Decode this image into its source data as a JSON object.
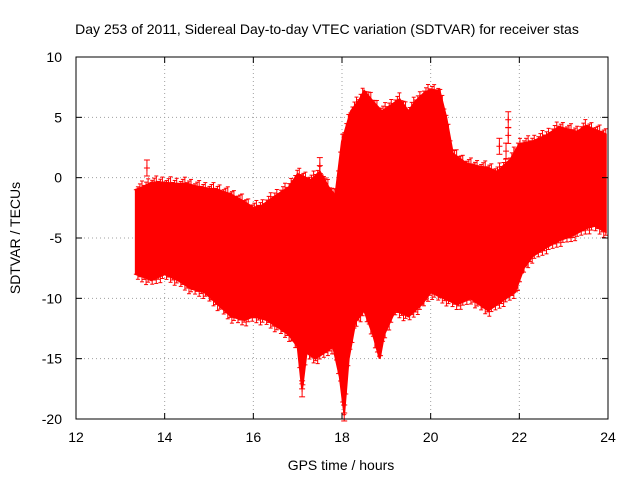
{
  "chart_data": {
    "type": "scatter",
    "title": "Day 253 of 2011, Sidereal Day-to-day VTEC variation (SDTVAR) for receiver stas",
    "xlabel": "GPS time / hours",
    "ylabel": "SDTVAR / TECUs",
    "xlim": [
      12,
      24
    ],
    "ylim": [
      -20,
      10
    ],
    "xticks": [
      "12",
      "14",
      "16",
      "18",
      "20",
      "22",
      "24"
    ],
    "yticks": [
      "-20",
      "-15",
      "-10",
      "-5",
      "0",
      "5",
      "10"
    ],
    "grid": true,
    "legend": "none",
    "series_color": "#ff0000",
    "upper_envelope": [
      [
        13.35,
        -1.0
      ],
      [
        13.5,
        -0.8
      ],
      [
        13.7,
        -0.4
      ],
      [
        14.0,
        -0.4
      ],
      [
        14.2,
        -0.5
      ],
      [
        14.5,
        -0.5
      ],
      [
        14.8,
        -0.8
      ],
      [
        15.0,
        -0.9
      ],
      [
        15.2,
        -1.0
      ],
      [
        15.5,
        -1.4
      ],
      [
        15.8,
        -2.0
      ],
      [
        16.0,
        -2.5
      ],
      [
        16.2,
        -2.3
      ],
      [
        16.5,
        -1.5
      ],
      [
        16.8,
        -0.8
      ],
      [
        17.0,
        0.3
      ],
      [
        17.3,
        -0.2
      ],
      [
        17.5,
        0.5
      ],
      [
        17.7,
        -0.8
      ],
      [
        17.85,
        -1.5
      ],
      [
        18.0,
        3.0
      ],
      [
        18.2,
        5.5
      ],
      [
        18.4,
        6.5
      ],
      [
        18.5,
        7.2
      ],
      [
        18.7,
        6.3
      ],
      [
        18.9,
        5.5
      ],
      [
        19.1,
        6.0
      ],
      [
        19.3,
        6.5
      ],
      [
        19.5,
        5.5
      ],
      [
        19.65,
        6.3
      ],
      [
        19.85,
        7.0
      ],
      [
        20.0,
        7.3
      ],
      [
        20.2,
        7.2
      ],
      [
        20.35,
        5.0
      ],
      [
        20.5,
        2.0
      ],
      [
        20.8,
        1.2
      ],
      [
        21.0,
        1.0
      ],
      [
        21.3,
        0.8
      ],
      [
        21.5,
        0.5
      ],
      [
        21.8,
        1.5
      ],
      [
        22.0,
        2.8
      ],
      [
        22.3,
        3.0
      ],
      [
        22.6,
        3.5
      ],
      [
        22.9,
        4.2
      ],
      [
        23.1,
        4.0
      ],
      [
        23.3,
        3.8
      ],
      [
        23.5,
        4.3
      ],
      [
        23.7,
        4.0
      ],
      [
        23.95,
        3.6
      ]
    ],
    "lower_envelope": [
      [
        13.35,
        -8.0
      ],
      [
        13.5,
        -8.2
      ],
      [
        13.7,
        -8.5
      ],
      [
        14.0,
        -8.0
      ],
      [
        14.3,
        -8.5
      ],
      [
        14.6,
        -9.2
      ],
      [
        14.9,
        -9.5
      ],
      [
        15.2,
        -10.5
      ],
      [
        15.5,
        -11.5
      ],
      [
        15.8,
        -11.8
      ],
      [
        16.0,
        -11.5
      ],
      [
        16.3,
        -11.8
      ],
      [
        16.6,
        -12.5
      ],
      [
        16.8,
        -13.0
      ],
      [
        17.0,
        -14.0
      ],
      [
        17.1,
        -17.5
      ],
      [
        17.2,
        -14.5
      ],
      [
        17.4,
        -15.0
      ],
      [
        17.6,
        -14.5
      ],
      [
        17.8,
        -14.0
      ],
      [
        17.95,
        -16.5
      ],
      [
        18.05,
        -19.5
      ],
      [
        18.15,
        -15.0
      ],
      [
        18.3,
        -12.0
      ],
      [
        18.5,
        -11.0
      ],
      [
        18.7,
        -13.0
      ],
      [
        18.85,
        -15.0
      ],
      [
        18.95,
        -13.0
      ],
      [
        19.2,
        -11.0
      ],
      [
        19.5,
        -11.5
      ],
      [
        19.8,
        -10.5
      ],
      [
        20.0,
        -9.5
      ],
      [
        20.3,
        -10.0
      ],
      [
        20.6,
        -10.5
      ],
      [
        20.9,
        -10.0
      ],
      [
        21.1,
        -10.5
      ],
      [
        21.3,
        -11.0
      ],
      [
        21.5,
        -10.5
      ],
      [
        21.7,
        -10.0
      ],
      [
        21.9,
        -9.5
      ],
      [
        22.1,
        -7.5
      ],
      [
        22.3,
        -6.5
      ],
      [
        22.6,
        -5.8
      ],
      [
        22.9,
        -5.2
      ],
      [
        23.2,
        -4.8
      ],
      [
        23.5,
        -4.2
      ],
      [
        23.7,
        -4.0
      ],
      [
        23.95,
        -4.5
      ]
    ],
    "outlier_points": [
      {
        "x": 13.6,
        "y": 0.8
      },
      {
        "x": 17.5,
        "y": 1.0
      },
      {
        "x": 20.6,
        "y": -9.0
      },
      {
        "x": 21.55,
        "y": 2.6
      },
      {
        "x": 21.7,
        "y": 2.2
      },
      {
        "x": 21.75,
        "y": 3.5
      },
      {
        "x": 21.75,
        "y": 4.8
      },
      {
        "x": 18.05,
        "y": -19.5
      },
      {
        "x": 17.1,
        "y": -17.5
      }
    ]
  }
}
